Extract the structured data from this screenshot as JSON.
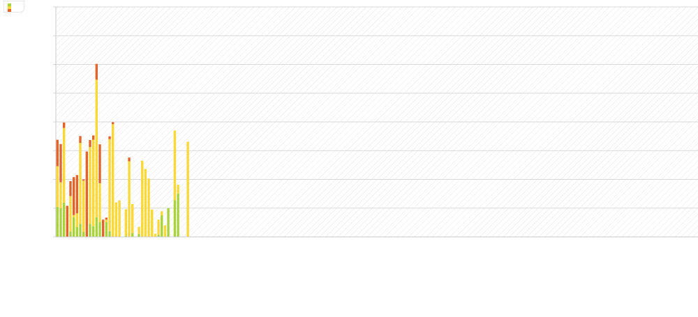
{
  "chart_data": {
    "type": "bar",
    "stacked": true,
    "title": "",
    "xlabel": "",
    "ylabel": "",
    "ylim": [
      0,
      8
    ],
    "grid": true,
    "legend": "top-left",
    "colors": [
      "#a9d33b",
      "#fbd835",
      "#e2632b"
    ],
    "series": [
      {
        "values": [
          1.04,
          1.0,
          1.19,
          0.0,
          0.18,
          0.68,
          0.34,
          0.45,
          0.18,
          0.0,
          0.45,
          0.37,
          0.68,
          0.51,
          0.0,
          0.51,
          0.2,
          0.0,
          0.0,
          0.0,
          0.0,
          0.04,
          0.0,
          0.14,
          0.0,
          0.1,
          0.0,
          0.0,
          0.0,
          0.0,
          0.0,
          0.06,
          0.75,
          0.0,
          1.0,
          0.0,
          1.28,
          1.51,
          0.0,
          0.0,
          0.0,
          0.0,
          0.0,
          0.0,
          0.0,
          0.0,
          0.0,
          0.0,
          0.0,
          0.0,
          0.0,
          0.0,
          0.0,
          0.0,
          0.0,
          0.0,
          0.0,
          0.0,
          0.0,
          0.0,
          0.0,
          0.0,
          0.0,
          0.0,
          0.0,
          0.0,
          0.0,
          0.0,
          0.0,
          0.0,
          0.0,
          0.0,
          0.0,
          0.0,
          0.0,
          0.0,
          0.0,
          0.0,
          0.0,
          0.0,
          0.0,
          0.0,
          0.0,
          0.0,
          0.0,
          0.0,
          0.0,
          0.0,
          0.0,
          0.0,
          0.0,
          0.0,
          0.0,
          0.0,
          0.0,
          0.0,
          0.0,
          0.0,
          0.0,
          0.0,
          0.0,
          0.0,
          0.0,
          0.0,
          0.0,
          0.0,
          0.0,
          0.0,
          0.0,
          0.0,
          0.0,
          0.0,
          0.0,
          0.0,
          0.0,
          0.0,
          0.0,
          0.0,
          0.0,
          0.0,
          0.0,
          0.0,
          0.0,
          0.0,
          0.0,
          0.0,
          0.0,
          0.0,
          0.0,
          0.0,
          0.0,
          0.0,
          0.0,
          0.0,
          0.0,
          0.0,
          0.0,
          0.0,
          0.0,
          0.0,
          0.0,
          0.0,
          0.0,
          0.0,
          0.0,
          0.0,
          0.0,
          0.0,
          0.0,
          0.0,
          0.0,
          0.0,
          0.0,
          0.0,
          0.0,
          0.0,
          0.0,
          0.0,
          0.0,
          0.0,
          0.0,
          0.0,
          0.0,
          0.0,
          0.0,
          0.0,
          0.0,
          0.0,
          0.0,
          0.0,
          0.0,
          0.0,
          0.0,
          0.0,
          0.0,
          0.0,
          0.0,
          0.0,
          0.0,
          0.0,
          0.0,
          0.0,
          0.0,
          0.0,
          0.0,
          0.0,
          0.0,
          0.0,
          0.0,
          0.0,
          0.0,
          0.0,
          0.0,
          0.0,
          0.0,
          0.0,
          0.0
        ]
      },
      {
        "values": [
          1.42,
          0.9,
          2.6,
          0.0,
          1.24,
          0.08,
          0.48,
          2.82,
          1.78,
          0.0,
          2.68,
          3.01,
          4.79,
          1.36,
          0.0,
          0.09,
          3.2,
          3.92,
          1.2,
          1.27,
          0.0,
          0.92,
          2.63,
          1.0,
          0.0,
          0.25,
          2.65,
          2.36,
          2.03,
          0.95,
          0.11,
          0.54,
          0.14,
          0.4,
          0.0,
          0.0,
          2.42,
          0.3,
          0.0,
          0.0,
          3.31,
          0.0,
          0.0,
          0.0,
          0.0,
          0.0,
          0.0,
          0.0,
          0.0,
          0.0,
          0.0,
          0.0,
          0.0,
          0.0,
          0.0,
          0.0,
          0.0,
          0.0,
          0.0,
          0.0,
          0.0,
          0.0,
          0.0,
          0.0,
          0.0,
          0.0,
          0.0,
          0.0,
          0.0,
          0.0,
          0.0,
          0.0,
          0.0,
          0.0,
          0.0,
          0.0,
          0.0,
          0.0,
          0.0,
          0.0,
          0.0,
          0.0,
          0.0,
          0.0,
          0.0,
          0.0,
          0.0,
          0.0,
          0.0,
          0.0,
          0.0,
          0.0,
          0.0,
          0.0,
          0.0,
          0.0,
          0.0,
          0.0,
          0.0,
          0.0,
          0.0,
          0.0,
          0.0,
          0.0,
          0.0,
          0.0,
          0.0,
          0.0,
          0.0,
          0.0,
          0.0,
          0.0,
          0.0,
          0.0,
          0.0,
          0.0,
          0.0,
          0.0,
          0.0,
          0.0,
          0.0,
          0.0,
          0.0,
          0.0,
          0.0,
          0.0,
          0.0,
          0.0,
          0.0,
          0.0,
          0.0,
          0.0,
          0.0,
          0.0,
          0.0,
          0.0,
          0.0,
          0.0,
          0.0,
          0.0,
          0.0,
          0.0,
          0.0,
          0.0,
          0.0,
          0.0,
          0.0,
          0.0,
          0.0,
          0.0,
          0.0,
          0.0,
          0.0,
          0.0,
          0.0,
          0.0,
          0.0,
          0.0,
          0.0,
          0.0,
          0.0,
          0.0,
          0.0,
          0.0,
          0.0,
          0.0,
          0.0,
          0.0,
          0.0,
          0.0,
          0.0,
          0.0,
          0.0,
          0.0,
          0.0,
          0.0,
          0.0,
          0.0,
          0.0,
          0.0,
          0.0,
          0.0,
          0.0,
          0.0,
          0.0,
          0.0,
          0.0,
          0.0,
          0.0,
          0.0,
          0.0,
          0.0,
          0.0
        ]
      },
      {
        "values": [
          0.92,
          1.33,
          0.19,
          1.08,
          0.52,
          1.32,
          1.33,
          0.24,
          0.04,
          2.97,
          0.24,
          0.15,
          0.55,
          1.35,
          0.6,
          0.07,
          0.1,
          0.07,
          0.0,
          0.0,
          0.0,
          0.0,
          0.13,
          0.0,
          0.0,
          0.0,
          0.0,
          0.0,
          0.0,
          0.0,
          0.0,
          0.0,
          0.0,
          0.0,
          0.0,
          0.0,
          0.0,
          0.0,
          0.0,
          0.0,
          0.0,
          0.0,
          0.0,
          0.0,
          0.0,
          0.0,
          0.0,
          0.0,
          0.0,
          0.0,
          0.0,
          0.0,
          0.0,
          0.0,
          0.0,
          0.0,
          0.0,
          0.0,
          0.0,
          0.0,
          0.0,
          0.0,
          0.0,
          0.0,
          0.0,
          0.0,
          0.0,
          0.0,
          0.0,
          0.0,
          0.0,
          0.0,
          0.0,
          0.0,
          0.0,
          0.0,
          0.0,
          0.0,
          0.0,
          0.0,
          0.0,
          0.0,
          0.0,
          0.0,
          0.0,
          0.0,
          0.0,
          0.0,
          0.0,
          0.0,
          0.0,
          0.0,
          0.0,
          0.0,
          0.0,
          0.0,
          0.0,
          0.0,
          0.0,
          0.0,
          0.0,
          0.0,
          0.0,
          0.0,
          0.0,
          0.0,
          0.0,
          0.0,
          0.0,
          0.0,
          0.0,
          0.0,
          0.0,
          0.0,
          0.0,
          0.0,
          0.0,
          0.0,
          0.0,
          0.0,
          0.0,
          0.0,
          0.0,
          0.0,
          0.0,
          0.0,
          0.0,
          0.0,
          0.0,
          0.0,
          0.0,
          0.0,
          0.0,
          0.0,
          0.0,
          0.0,
          0.0,
          0.0,
          0.0,
          0.0,
          0.0,
          0.0,
          0.0,
          0.0,
          0.0,
          0.0,
          0.0,
          0.0,
          0.0,
          0.0,
          0.0,
          0.0,
          0.0,
          0.0,
          0.0,
          0.0,
          0.0,
          0.0,
          0.0,
          0.0,
          0.0,
          0.0,
          0.0,
          0.0,
          0.0,
          0.0,
          0.0,
          0.0,
          0.0,
          0.0,
          0.0,
          0.0,
          0.0,
          0.0,
          0.0,
          0.0,
          0.0,
          0.0,
          0.0,
          0.0,
          0.0,
          0.0,
          0.0,
          0.0,
          0.0,
          0.0,
          0.0,
          0.0,
          0.0,
          0.0,
          0.0,
          0.0,
          0.0,
          0.0,
          0.0
        ]
      }
    ]
  }
}
